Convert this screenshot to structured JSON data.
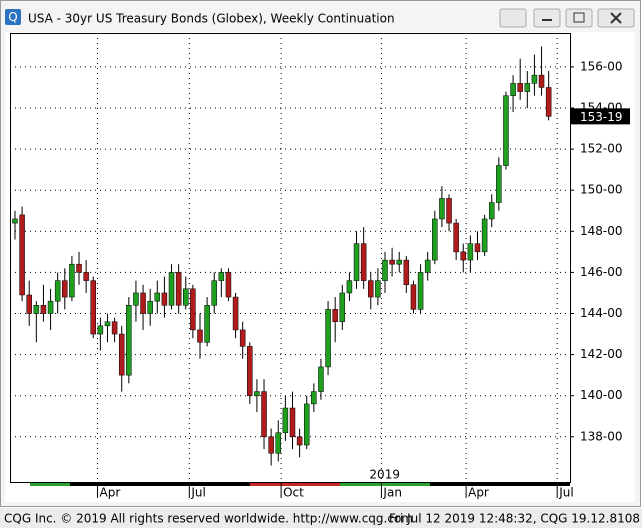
{
  "chart_data": {
    "type": "candlestick",
    "title": "USA - 30yr US Treasury Bonds (Globex), Weekly Continuation",
    "up_color": "#1f9e1f",
    "down_color": "#b01c1c",
    "grid": true,
    "ylim": [
      135.8,
      157.65
    ],
    "yticks": [
      {
        "value": 138,
        "label": "138-00"
      },
      {
        "value": 140,
        "label": "140-00"
      },
      {
        "value": 142,
        "label": "142-00"
      },
      {
        "value": 144,
        "label": "144-00"
      },
      {
        "value": 146,
        "label": "146-00"
      },
      {
        "value": 148,
        "label": "148-00"
      },
      {
        "value": 150,
        "label": "150-00"
      },
      {
        "value": 152,
        "label": "152-00"
      },
      {
        "value": 154,
        "label": "154-00"
      },
      {
        "value": 156,
        "label": "156-00"
      }
    ],
    "xlim": [
      -0.7,
      78.0
    ],
    "xticks": [
      {
        "value": 11.6,
        "label": "Apr"
      },
      {
        "value": 24.5,
        "label": "Jul"
      },
      {
        "value": 37.4,
        "label": "Oct"
      },
      {
        "value": 51.5,
        "label": "Jan"
      },
      {
        "value": 63.4,
        "label": "Apr"
      },
      {
        "value": 76.2,
        "label": "Jul"
      }
    ],
    "year_label": {
      "value": 51.5,
      "label": "2019"
    },
    "last_price": {
      "value": 153.59375,
      "label": "153-19"
    },
    "candles": [
      [
        148.4,
        149.0,
        147.6,
        148.6
      ],
      [
        148.8,
        149.2,
        144.6,
        144.9
      ],
      [
        144.9,
        145.6,
        143.4,
        144.0
      ],
      [
        144.0,
        144.6,
        142.6,
        144.4
      ],
      [
        144.4,
        145.4,
        143.6,
        144.0
      ],
      [
        144.0,
        145.2,
        143.2,
        144.6
      ],
      [
        144.6,
        146.0,
        144.0,
        145.6
      ],
      [
        145.6,
        146.2,
        144.2,
        144.8
      ],
      [
        144.8,
        146.8,
        144.6,
        146.4
      ],
      [
        146.4,
        147.0,
        145.4,
        146.0
      ],
      [
        146.0,
        146.6,
        145.0,
        145.6
      ],
      [
        145.6,
        145.8,
        142.8,
        143.0
      ],
      [
        143.0,
        143.8,
        142.2,
        143.4
      ],
      [
        143.4,
        144.0,
        142.6,
        143.6
      ],
      [
        143.6,
        143.8,
        142.6,
        143.0
      ],
      [
        143.0,
        143.4,
        140.2,
        141.0
      ],
      [
        141.0,
        144.8,
        140.6,
        144.4
      ],
      [
        144.4,
        145.6,
        143.6,
        145.0
      ],
      [
        145.0,
        145.4,
        143.2,
        144.0
      ],
      [
        144.0,
        145.2,
        143.4,
        144.6
      ],
      [
        144.6,
        145.6,
        144.0,
        145.0
      ],
      [
        145.0,
        145.8,
        143.8,
        144.4
      ],
      [
        144.4,
        146.4,
        144.2,
        146.0
      ],
      [
        146.0,
        146.4,
        144.0,
        144.4
      ],
      [
        144.4,
        145.8,
        144.2,
        145.2
      ],
      [
        145.2,
        145.4,
        142.8,
        143.2
      ],
      [
        143.2,
        144.0,
        141.8,
        142.6
      ],
      [
        142.6,
        144.8,
        142.4,
        144.4
      ],
      [
        144.4,
        146.0,
        144.0,
        145.6
      ],
      [
        145.6,
        146.2,
        144.8,
        146.0
      ],
      [
        146.0,
        146.2,
        144.6,
        144.8
      ],
      [
        144.8,
        145.0,
        142.8,
        143.2
      ],
      [
        143.2,
        143.6,
        141.8,
        142.4
      ],
      [
        142.4,
        142.6,
        139.6,
        140.0
      ],
      [
        140.0,
        140.8,
        139.2,
        140.2
      ],
      [
        140.2,
        140.8,
        137.4,
        138.0
      ],
      [
        138.0,
        138.4,
        136.6,
        137.2
      ],
      [
        137.2,
        138.8,
        136.8,
        138.2
      ],
      [
        138.2,
        140.0,
        137.8,
        139.4
      ],
      [
        139.4,
        140.2,
        137.4,
        138.0
      ],
      [
        138.0,
        138.4,
        137.0,
        137.6
      ],
      [
        137.6,
        140.0,
        137.4,
        139.6
      ],
      [
        139.6,
        140.6,
        139.2,
        140.2
      ],
      [
        140.2,
        141.8,
        139.8,
        141.4
      ],
      [
        141.4,
        144.6,
        141.0,
        144.2
      ],
      [
        144.2,
        144.8,
        142.6,
        143.6
      ],
      [
        143.6,
        145.4,
        143.2,
        145.0
      ],
      [
        145.0,
        146.0,
        144.6,
        145.6
      ],
      [
        145.6,
        148.0,
        145.2,
        147.4
      ],
      [
        147.4,
        148.2,
        145.2,
        145.6
      ],
      [
        145.6,
        146.0,
        144.2,
        144.8
      ],
      [
        144.8,
        146.2,
        144.4,
        145.6
      ],
      [
        145.6,
        147.0,
        145.0,
        146.6
      ],
      [
        146.6,
        147.2,
        145.8,
        146.4
      ],
      [
        146.4,
        147.0,
        146.0,
        146.6
      ],
      [
        146.6,
        146.8,
        145.0,
        145.4
      ],
      [
        145.4,
        145.6,
        144.0,
        144.2
      ],
      [
        144.2,
        146.4,
        144.0,
        146.0
      ],
      [
        146.0,
        147.0,
        145.6,
        146.6
      ],
      [
        146.6,
        149.0,
        146.4,
        148.6
      ],
      [
        148.6,
        150.2,
        148.2,
        149.6
      ],
      [
        149.6,
        149.8,
        148.0,
        148.4
      ],
      [
        148.4,
        148.6,
        146.6,
        147.0
      ],
      [
        147.0,
        147.4,
        146.0,
        146.6
      ],
      [
        146.6,
        147.8,
        146.0,
        147.4
      ],
      [
        147.4,
        148.0,
        146.6,
        147.0
      ],
      [
        147.0,
        148.8,
        146.8,
        148.6
      ],
      [
        148.6,
        149.8,
        148.2,
        149.4
      ],
      [
        149.4,
        151.6,
        149.0,
        151.2
      ],
      [
        151.2,
        154.8,
        151.0,
        154.6
      ],
      [
        154.6,
        155.6,
        153.8,
        155.2
      ],
      [
        155.2,
        156.4,
        154.4,
        154.8
      ],
      [
        154.8,
        155.8,
        154.0,
        155.2
      ],
      [
        155.2,
        156.6,
        154.6,
        155.6
      ],
      [
        155.6,
        157.0,
        154.6,
        155.0
      ],
      [
        155.0,
        155.8,
        153.4,
        153.59375
      ]
    ]
  },
  "footer": {
    "left": "CQG Inc. © 2019 All rights reserved worldwide. http://www.cqg.com",
    "right": "Fri Jul 12 2019 12:48:32, CQG 19.12.8108"
  }
}
